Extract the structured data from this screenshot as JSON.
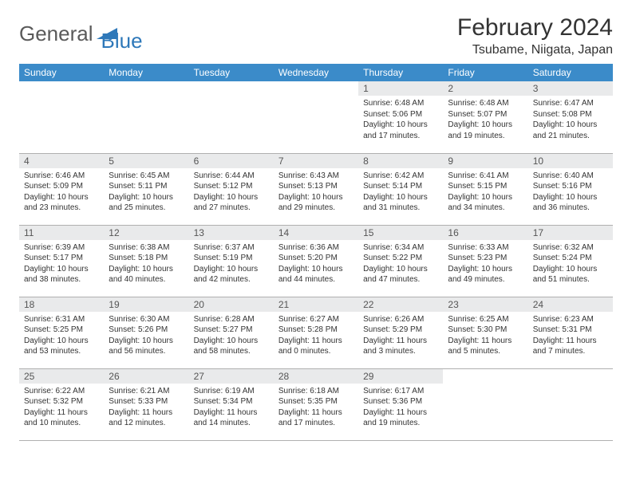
{
  "brand": {
    "part1": "General",
    "part2": "Blue"
  },
  "title": "February 2024",
  "location": "Tsubame, Niigata, Japan",
  "colors": {
    "header_bg": "#3b8bc9",
    "header_fg": "#ffffff",
    "daynum_bg": "#e9eaeb",
    "text": "#333333",
    "rule": "#b0b0b0",
    "brand_gray": "#5a5a5a",
    "brand_blue": "#2e78b9"
  },
  "weekdays": [
    "Sunday",
    "Monday",
    "Tuesday",
    "Wednesday",
    "Thursday",
    "Friday",
    "Saturday"
  ],
  "weeks": [
    [
      null,
      null,
      null,
      null,
      {
        "n": "1",
        "sr": "6:48 AM",
        "ss": "5:06 PM",
        "dl": "10 hours and 17 minutes."
      },
      {
        "n": "2",
        "sr": "6:48 AM",
        "ss": "5:07 PM",
        "dl": "10 hours and 19 minutes."
      },
      {
        "n": "3",
        "sr": "6:47 AM",
        "ss": "5:08 PM",
        "dl": "10 hours and 21 minutes."
      }
    ],
    [
      {
        "n": "4",
        "sr": "6:46 AM",
        "ss": "5:09 PM",
        "dl": "10 hours and 23 minutes."
      },
      {
        "n": "5",
        "sr": "6:45 AM",
        "ss": "5:11 PM",
        "dl": "10 hours and 25 minutes."
      },
      {
        "n": "6",
        "sr": "6:44 AM",
        "ss": "5:12 PM",
        "dl": "10 hours and 27 minutes."
      },
      {
        "n": "7",
        "sr": "6:43 AM",
        "ss": "5:13 PM",
        "dl": "10 hours and 29 minutes."
      },
      {
        "n": "8",
        "sr": "6:42 AM",
        "ss": "5:14 PM",
        "dl": "10 hours and 31 minutes."
      },
      {
        "n": "9",
        "sr": "6:41 AM",
        "ss": "5:15 PM",
        "dl": "10 hours and 34 minutes."
      },
      {
        "n": "10",
        "sr": "6:40 AM",
        "ss": "5:16 PM",
        "dl": "10 hours and 36 minutes."
      }
    ],
    [
      {
        "n": "11",
        "sr": "6:39 AM",
        "ss": "5:17 PM",
        "dl": "10 hours and 38 minutes."
      },
      {
        "n": "12",
        "sr": "6:38 AM",
        "ss": "5:18 PM",
        "dl": "10 hours and 40 minutes."
      },
      {
        "n": "13",
        "sr": "6:37 AM",
        "ss": "5:19 PM",
        "dl": "10 hours and 42 minutes."
      },
      {
        "n": "14",
        "sr": "6:36 AM",
        "ss": "5:20 PM",
        "dl": "10 hours and 44 minutes."
      },
      {
        "n": "15",
        "sr": "6:34 AM",
        "ss": "5:22 PM",
        "dl": "10 hours and 47 minutes."
      },
      {
        "n": "16",
        "sr": "6:33 AM",
        "ss": "5:23 PM",
        "dl": "10 hours and 49 minutes."
      },
      {
        "n": "17",
        "sr": "6:32 AM",
        "ss": "5:24 PM",
        "dl": "10 hours and 51 minutes."
      }
    ],
    [
      {
        "n": "18",
        "sr": "6:31 AM",
        "ss": "5:25 PM",
        "dl": "10 hours and 53 minutes."
      },
      {
        "n": "19",
        "sr": "6:30 AM",
        "ss": "5:26 PM",
        "dl": "10 hours and 56 minutes."
      },
      {
        "n": "20",
        "sr": "6:28 AM",
        "ss": "5:27 PM",
        "dl": "10 hours and 58 minutes."
      },
      {
        "n": "21",
        "sr": "6:27 AM",
        "ss": "5:28 PM",
        "dl": "11 hours and 0 minutes."
      },
      {
        "n": "22",
        "sr": "6:26 AM",
        "ss": "5:29 PM",
        "dl": "11 hours and 3 minutes."
      },
      {
        "n": "23",
        "sr": "6:25 AM",
        "ss": "5:30 PM",
        "dl": "11 hours and 5 minutes."
      },
      {
        "n": "24",
        "sr": "6:23 AM",
        "ss": "5:31 PM",
        "dl": "11 hours and 7 minutes."
      }
    ],
    [
      {
        "n": "25",
        "sr": "6:22 AM",
        "ss": "5:32 PM",
        "dl": "11 hours and 10 minutes."
      },
      {
        "n": "26",
        "sr": "6:21 AM",
        "ss": "5:33 PM",
        "dl": "11 hours and 12 minutes."
      },
      {
        "n": "27",
        "sr": "6:19 AM",
        "ss": "5:34 PM",
        "dl": "11 hours and 14 minutes."
      },
      {
        "n": "28",
        "sr": "6:18 AM",
        "ss": "5:35 PM",
        "dl": "11 hours and 17 minutes."
      },
      {
        "n": "29",
        "sr": "6:17 AM",
        "ss": "5:36 PM",
        "dl": "11 hours and 19 minutes."
      },
      null,
      null
    ]
  ]
}
